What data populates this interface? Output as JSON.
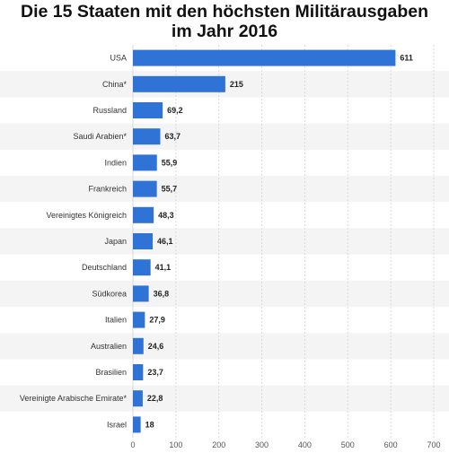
{
  "chart_data": {
    "type": "bar",
    "orientation": "horizontal",
    "title_lines": [
      "Die 15 Staaten mit den höchsten Militärausgaben",
      "im Jahr 2016"
    ],
    "categories": [
      "USA",
      "China*",
      "Russland",
      "Saudi Arabien*",
      "Indien",
      "Frankreich",
      "Vereinigtes Königreich",
      "Japan",
      "Deutschland",
      "Südkorea",
      "Italien",
      "Australien",
      "Brasilien",
      "Vereinigte Arabische Emirate*",
      "Israel"
    ],
    "values": [
      611,
      215,
      69.2,
      63.7,
      55.9,
      55.7,
      48.3,
      46.1,
      41.1,
      36.8,
      27.9,
      24.6,
      23.7,
      22.8,
      18
    ],
    "value_labels": [
      "611",
      "215",
      "69,2",
      "63,7",
      "55,9",
      "55,7",
      "48,3",
      "46,1",
      "41,1",
      "36,8",
      "27,9",
      "24,6",
      "23,7",
      "22,8",
      "18"
    ],
    "xticks": [
      "0",
      "100",
      "200",
      "300",
      "400",
      "500",
      "600",
      "700"
    ],
    "xlim": [
      0,
      700
    ],
    "grid": true,
    "bar_color": "#2f73d6",
    "stripe_color": "#f4f4f4"
  }
}
